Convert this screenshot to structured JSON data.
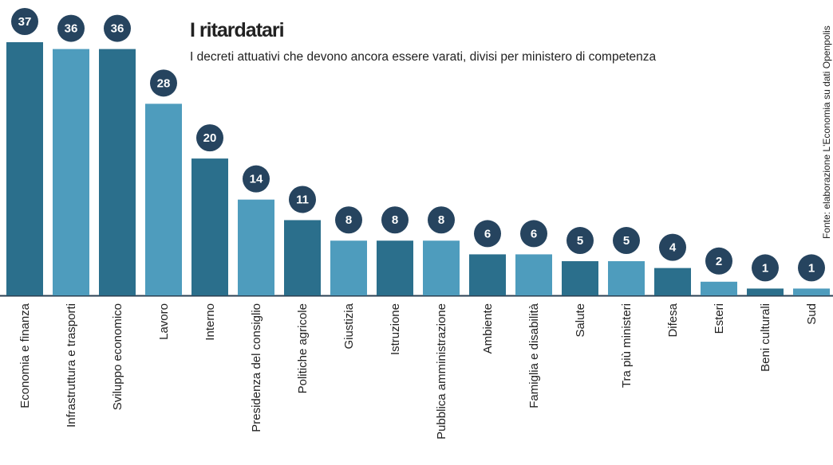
{
  "chart_data": {
    "type": "bar",
    "title": "I ritardatari",
    "subtitle": "I decreti attuativi che devono ancora essere varati, divisi per ministero di competenza",
    "source": "Fonte: elaborazione L'Economia su dati Openpolis",
    "categories": [
      "Economia e finanza",
      "Infrastruttura e trasporti",
      "Sviluppo economico",
      "Lavoro",
      "Interno",
      "Presidenza del consiglio",
      "Politiche agricole",
      "Giustizia",
      "Istruzione",
      "Pubblica amministrazione",
      "Ambiente",
      "Famiglia e disabilità",
      "Salute",
      "Tra più ministeri",
      "Difesa",
      "Esteri",
      "Beni culturali",
      "Sud"
    ],
    "values": [
      37,
      36,
      36,
      28,
      20,
      14,
      11,
      8,
      8,
      8,
      6,
      6,
      5,
      5,
      4,
      2,
      1,
      1
    ],
    "colors": [
      "#2b6f8c",
      "#4e9cbd",
      "#2b6f8c",
      "#4e9cbd",
      "#2b6f8c",
      "#4e9cbd",
      "#2b6f8c",
      "#4e9cbd",
      "#2b6f8c",
      "#4e9cbd",
      "#2b6f8c",
      "#4e9cbd",
      "#2b6f8c",
      "#4e9cbd",
      "#2b6f8c",
      "#4e9cbd",
      "#2b6f8c",
      "#4e9cbd"
    ],
    "label_color": "#26445f"
  }
}
